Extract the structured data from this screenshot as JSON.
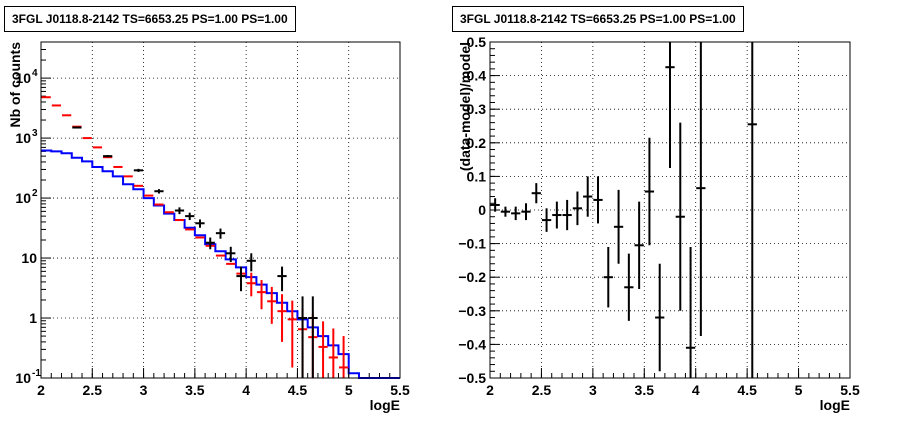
{
  "chart_data": [
    {
      "type": "histogram",
      "title": "3FGL J0118.8-2142 TS=6653.25 PS=1.00 PS=1.00",
      "xlabel": "logE",
      "ylabel": "Nb of counts",
      "xlim": [
        2,
        5.5
      ],
      "ylim": [
        0.1,
        40000
      ],
      "yscale": "log",
      "grid": true,
      "x_ticks": [
        "2",
        "2.5",
        "3",
        "3.5",
        "4",
        "4.5",
        "5",
        "5.5"
      ],
      "y_ticks": [
        {
          "value": 0.1,
          "label": "10",
          "exp": "-1"
        },
        {
          "value": 1,
          "label": "1",
          "exp": ""
        },
        {
          "value": 10,
          "label": "10",
          "exp": ""
        },
        {
          "value": 100,
          "label": "10",
          "exp": "2"
        },
        {
          "value": 1000,
          "label": "10",
          "exp": "3"
        },
        {
          "value": 10000,
          "label": "10",
          "exp": "4"
        }
      ],
      "bin_edges": [
        2.0,
        2.1,
        2.2,
        2.3,
        2.4,
        2.5,
        2.6,
        2.7,
        2.8,
        2.9,
        3.0,
        3.1,
        3.2,
        3.3,
        3.4,
        3.5,
        3.6,
        3.7,
        3.8,
        3.9,
        4.0,
        4.1,
        4.2,
        4.3,
        4.4,
        4.5,
        4.6,
        4.7,
        4.8,
        4.9,
        5.0,
        5.1,
        5.2,
        5.3,
        5.4,
        5.5
      ],
      "series": [
        {
          "color": "#0000ff",
          "style": "step",
          "values": [
            620,
            600,
            560,
            470,
            410,
            330,
            280,
            230,
            170,
            140,
            100,
            75,
            55,
            43,
            32,
            24,
            17,
            13,
            9.5,
            7.0,
            4.8,
            3.6,
            2.6,
            1.8,
            1.3,
            0.95,
            0.7,
            0.5,
            0.35,
            0.25,
            0.12,
            0.1,
            0.1,
            0.1,
            0.1
          ]
        },
        {
          "color": "#ff0000",
          "style": "errorbar",
          "x": [
            2.05,
            2.15,
            2.25,
            2.35,
            2.45,
            2.55,
            2.65,
            2.75,
            2.85,
            2.95,
            3.05,
            3.15,
            3.25,
            3.35,
            3.45,
            3.55,
            3.65,
            3.75,
            3.85,
            3.95,
            4.05,
            4.15,
            4.25,
            4.35,
            4.45,
            4.55,
            4.65,
            4.75,
            4.85,
            4.95
          ],
          "y": [
            4800,
            3500,
            2400,
            1550,
            1000,
            700,
            480,
            330,
            230,
            160,
            110,
            78,
            58,
            43,
            30,
            22,
            16,
            11,
            8.0,
            5.5,
            3.8,
            2.7,
            1.9,
            1.3,
            0.95,
            0.65,
            0.48,
            0.33,
            0.22,
            0.15
          ],
          "err_lo": [
            0,
            0,
            0,
            0,
            0,
            0,
            0,
            0,
            0,
            0,
            0,
            0,
            0,
            0,
            0,
            0,
            0,
            0,
            0,
            0,
            1.5,
            1.3,
            1.1,
            0.9,
            0.8,
            0.6,
            0.45,
            0.32,
            0.21,
            0.14
          ],
          "err_hi": [
            0,
            0,
            0,
            0,
            0,
            0,
            0,
            0,
            0,
            0,
            0,
            0,
            0,
            0,
            0,
            0,
            0,
            0,
            0,
            0,
            1.9,
            1.6,
            1.4,
            1.2,
            1.0,
            0.8,
            0.7,
            0.55,
            0.45,
            0.35
          ]
        },
        {
          "color": "#000000",
          "style": "errorbar",
          "x": [
            2.35,
            2.65,
            2.95,
            3.15,
            3.35,
            3.45,
            3.55,
            3.65,
            3.75,
            3.85,
            3.95,
            4.05,
            4.35,
            4.55,
            4.65
          ],
          "y": [
            1500,
            500,
            290,
            130,
            62,
            50,
            38,
            18,
            26,
            12,
            5,
            9,
            5,
            1,
            1
          ],
          "err_lo": [
            40,
            22,
            17,
            11,
            8,
            7,
            6,
            4,
            5,
            3.4,
            2.2,
            3,
            2.2,
            0.9,
            0.9
          ],
          "err_hi": [
            40,
            22,
            17,
            11,
            8,
            7,
            6,
            4,
            5,
            3.4,
            2.2,
            3,
            2.2,
            1.3,
            1.3
          ]
        }
      ]
    },
    {
      "type": "scatter",
      "title": "3FGL J0118.8-2142 TS=6653.25 PS=1.00 PS=1.00",
      "xlabel": "logE",
      "ylabel": "(data-model)/model",
      "xlim": [
        2,
        5.5
      ],
      "ylim": [
        -0.5,
        0.5
      ],
      "grid": true,
      "x_ticks": [
        "2",
        "2.5",
        "3",
        "3.5",
        "4",
        "4.5",
        "5",
        "5.5"
      ],
      "y_ticks": [
        "−0.5",
        "−0.4",
        "−0.3",
        "−0.2",
        "−0.1",
        "0",
        "0.1",
        "0.2",
        "0.3",
        "0.4",
        "0.5"
      ],
      "series": [
        {
          "color": "#000000",
          "x": [
            2.05,
            2.15,
            2.25,
            2.35,
            2.45,
            2.55,
            2.65,
            2.75,
            2.85,
            2.95,
            3.05,
            3.15,
            3.25,
            3.35,
            3.45,
            3.55,
            3.65,
            3.75,
            3.85,
            3.95,
            4.05,
            4.55
          ],
          "y": [
            0.015,
            -0.005,
            -0.01,
            -0.005,
            0.05,
            -0.03,
            -0.015,
            -0.015,
            0.005,
            0.04,
            0.03,
            -0.2,
            -0.05,
            -0.23,
            -0.105,
            0.055,
            -0.32,
            0.425,
            -0.02,
            -0.41,
            0.065,
            0.255
          ],
          "err": [
            0.02,
            0.015,
            0.02,
            0.025,
            0.03,
            0.035,
            0.04,
            0.045,
            0.05,
            0.06,
            0.07,
            0.09,
            0.11,
            0.1,
            0.13,
            0.16,
            0.16,
            0.3,
            0.28,
            0.3,
            0.44,
            0.8
          ]
        }
      ]
    }
  ]
}
